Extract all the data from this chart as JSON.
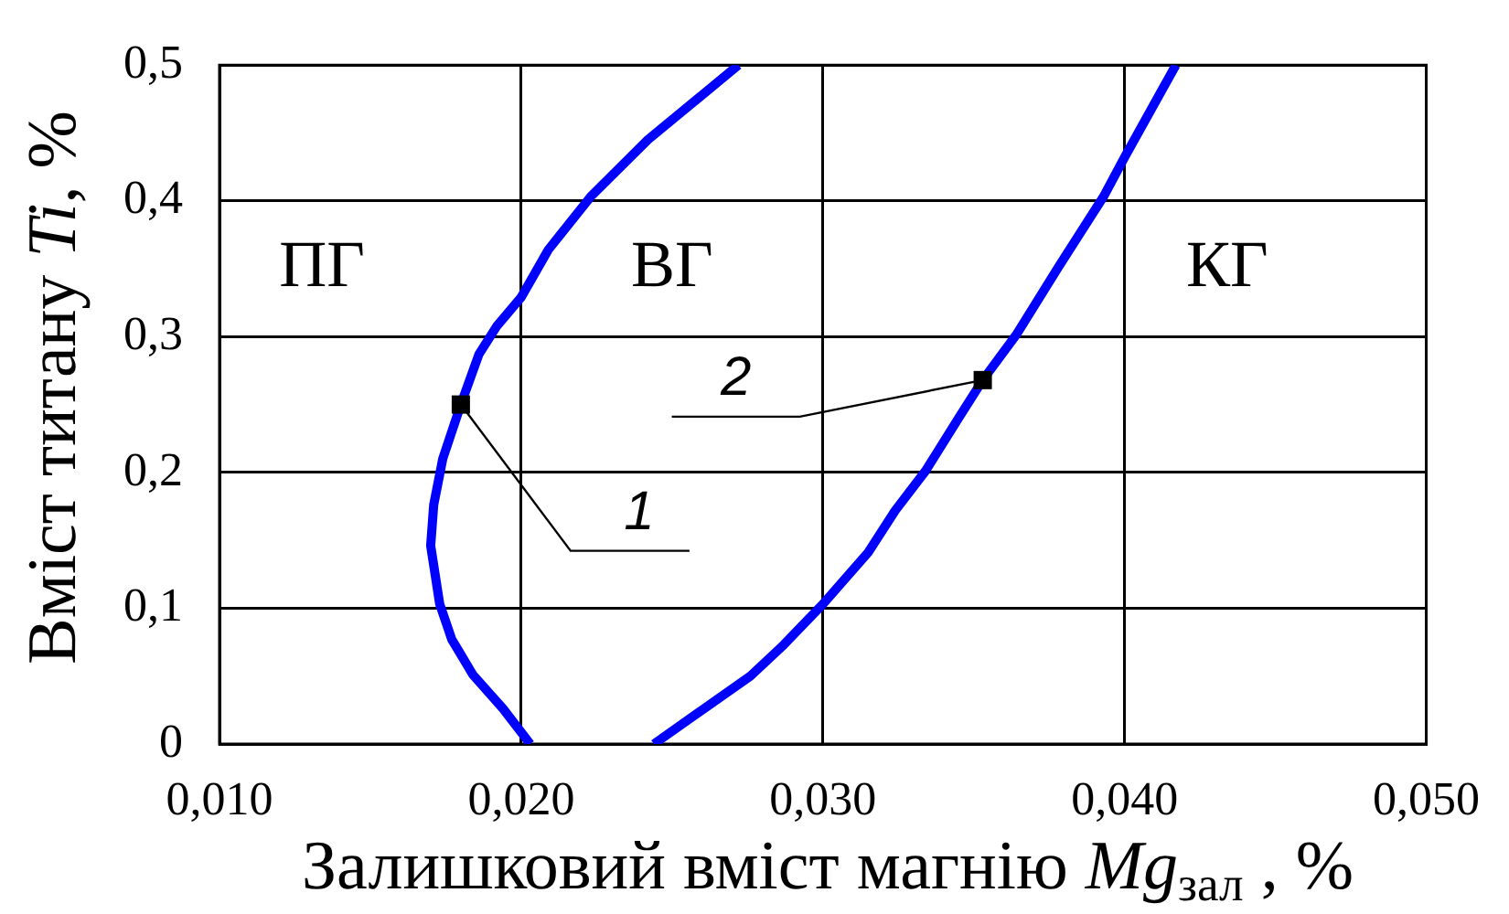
{
  "chart_data": {
    "type": "line",
    "xlabel": "Залишковий вміст магнію Mg$_{зал}$ , %",
    "ylabel": "Вміст титану Ti, %",
    "xlim": [
      0.01,
      0.05
    ],
    "xticks": [
      {
        "value": 0.01,
        "label": "0,010"
      },
      {
        "value": 0.02,
        "label": "0,020"
      },
      {
        "value": 0.03,
        "label": "0,030"
      },
      {
        "value": 0.04,
        "label": "0,040"
      },
      {
        "value": 0.05,
        "label": "0,050"
      }
    ],
    "ylim": [
      0,
      0.5
    ],
    "yticks": [
      0,
      {
        "value": 0.1,
        "label": "0,1"
      },
      {
        "value": 0.2,
        "label": "0,2"
      },
      {
        "value": 0.3,
        "label": "0,3"
      },
      {
        "value": 0.4,
        "label": "0,4"
      },
      {
        "value": 0.5,
        "label": "0,5"
      }
    ],
    "grid": true,
    "legend": false,
    "marker": "none",
    "line_style": "solid",
    "series": [
      {
        "color": "#0000ff",
        "x": [
          0.0203,
          0.0194,
          0.0184,
          0.0177,
          0.0173,
          0.017,
          0.0171,
          0.0174,
          0.018,
          0.0186,
          0.0192,
          0.02,
          0.0209,
          0.0223,
          0.0242,
          0.0272
        ],
        "values": [
          0,
          0.026,
          0.051,
          0.077,
          0.103,
          0.146,
          0.176,
          0.21,
          0.25,
          0.287,
          0.308,
          0.329,
          0.364,
          0.403,
          0.445,
          0.5
        ]
      },
      {
        "color": "#0000ff",
        "x": [
          0.0244,
          0.0258,
          0.0276,
          0.0287,
          0.03,
          0.0315,
          0.0324,
          0.0334,
          0.0345,
          0.0353,
          0.0364,
          0.0378,
          0.0393,
          0.04,
          0.0417
        ],
        "values": [
          0,
          0.022,
          0.05,
          0.073,
          0.103,
          0.141,
          0.172,
          0.201,
          0.24,
          0.268,
          0.301,
          0.351,
          0.403,
          0.432,
          0.5
        ]
      }
    ],
    "annotations": [
      "ПГ",
      "ВГ",
      "КГ",
      {
        "text": "1",
        "x": 0.018,
        "y": 0.25
      },
      {
        "text": "2",
        "x": 0.0353,
        "y": 0.268
      }
    ]
  }
}
